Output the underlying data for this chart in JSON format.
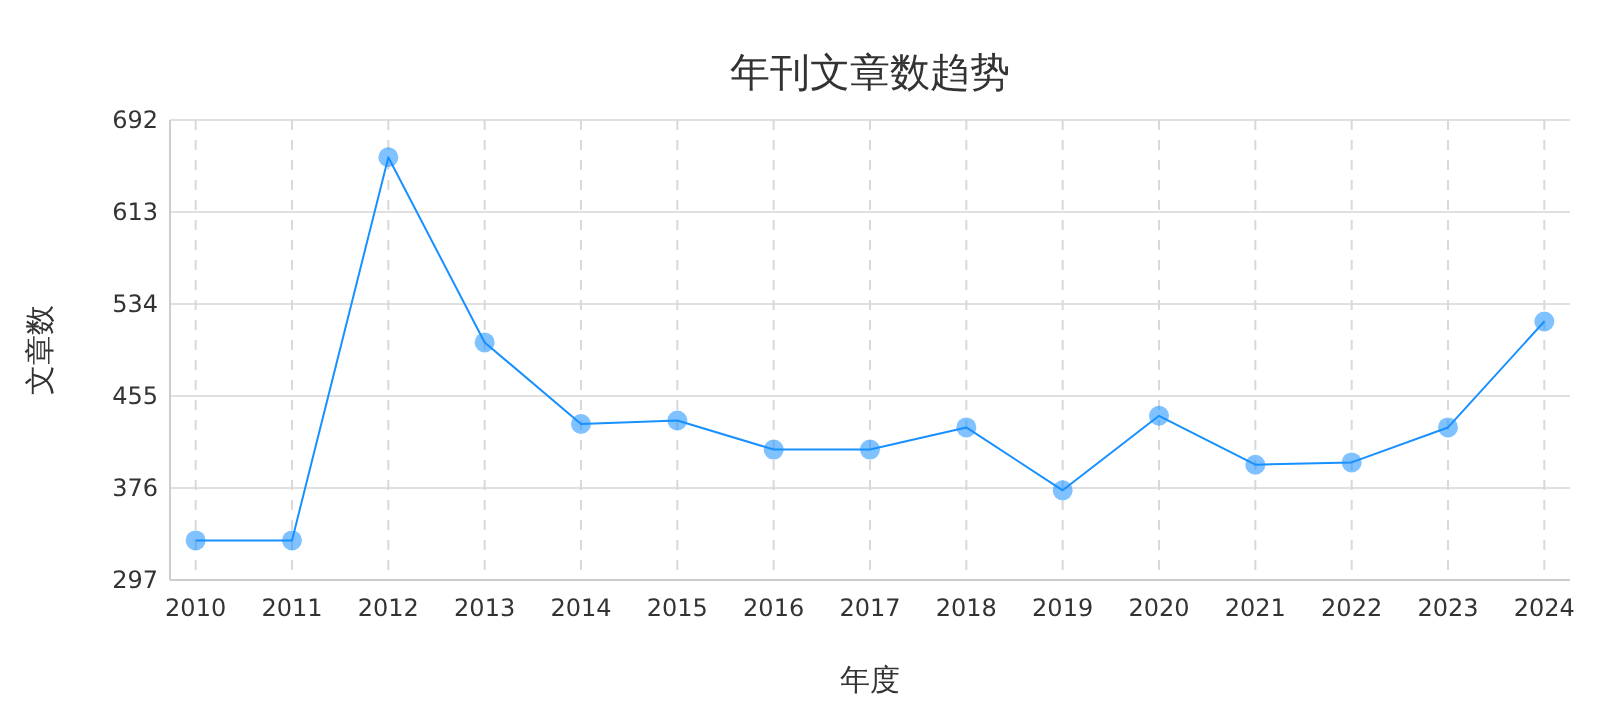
{
  "chart_data": {
    "type": "line",
    "title": "年刊文章数趋势",
    "xlabel": "年度",
    "ylabel": "文章数",
    "categories": [
      "2010",
      "2011",
      "2012",
      "2013",
      "2014",
      "2015",
      "2016",
      "2017",
      "2018",
      "2019",
      "2020",
      "2021",
      "2022",
      "2023",
      "2024"
    ],
    "series": [
      {
        "color": "#1890ff",
        "values": [
          331,
          331,
          660,
          501,
          431,
          434,
          409,
          409,
          428,
          374,
          438,
          396,
          398,
          428,
          519
        ]
      }
    ],
    "ylim": [
      297,
      692
    ],
    "yticks": [
      297,
      376,
      455,
      534,
      613,
      692
    ],
    "grid": true,
    "marker": "circle",
    "line_style": "solid"
  }
}
